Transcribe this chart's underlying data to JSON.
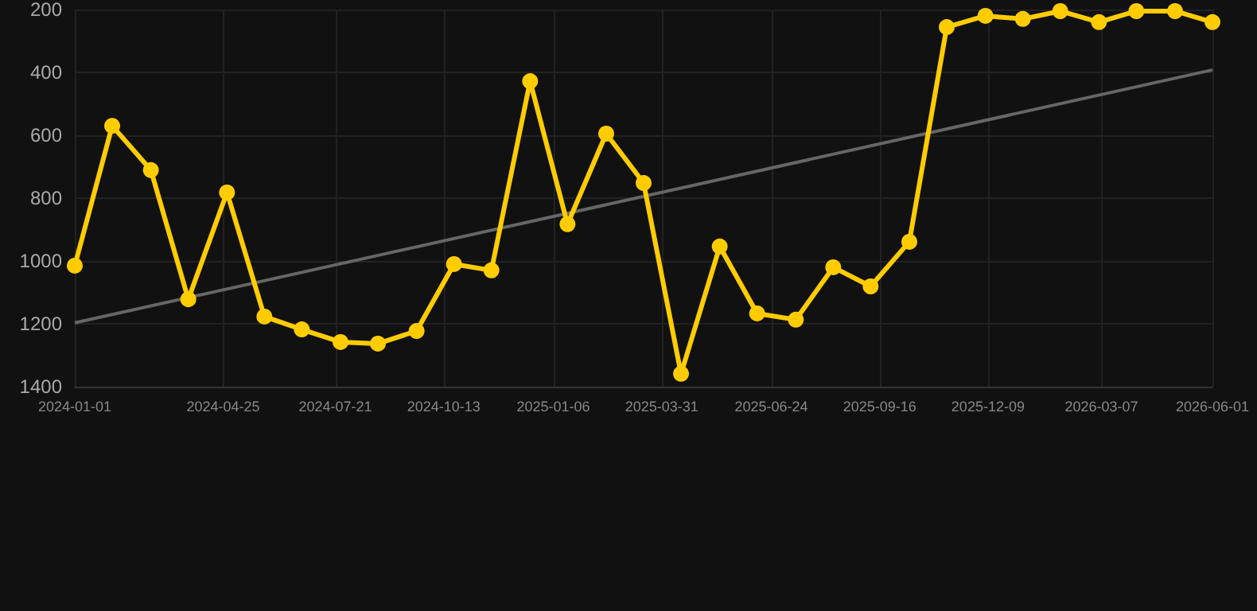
{
  "chart_data": {
    "type": "line",
    "x": [
      "2024-01-01",
      "2024-01-30",
      "2024-02-29",
      "2024-03-29",
      "2024-04-28",
      "2024-05-27",
      "2024-06-25",
      "2024-07-25",
      "2024-08-23",
      "2024-09-22",
      "2024-10-21",
      "2024-11-19",
      "2024-12-19",
      "2025-01-17",
      "2025-02-16",
      "2025-03-17",
      "2025-04-15",
      "2025-05-15",
      "2025-06-13",
      "2025-07-13",
      "2025-08-11",
      "2025-09-09",
      "2025-10-09",
      "2025-11-07",
      "2025-12-07",
      "2026-01-05",
      "2026-02-03",
      "2026-03-05",
      "2026-04-03",
      "2026-05-03",
      "2026-06-01"
    ],
    "series": [
      {
        "color": "#ffcc00",
        "marker": "circle",
        "values": [
          1015,
          570,
          711,
          1122,
          782,
          1177,
          1218,
          1258,
          1263,
          1223,
          1010,
          1030,
          428,
          883,
          595,
          752,
          1359,
          954,
          1167,
          1187,
          1020,
          1081,
          939,
          256,
          220,
          230,
          205,
          240,
          205,
          205,
          240
        ]
      },
      {
        "type": "line",
        "color": "#666666",
        "marker": "none",
        "x": [
          "2024-01-01",
          "2026-06-01"
        ],
        "values": [
          1197,
          392
        ]
      }
    ],
    "ylim": [
      1400,
      200
    ],
    "yticks": [
      200,
      400,
      600,
      800,
      1000,
      1200,
      1400
    ],
    "xlim": [
      "2024-01-01",
      "2026-06-01"
    ],
    "xticks": [
      "2024-01-01",
      "2024-04-25",
      "2024-07-21",
      "2024-10-13",
      "2025-01-06",
      "2025-03-31",
      "2025-06-24",
      "2025-09-16",
      "2025-12-09",
      "2026-03-07",
      "2026-06-01"
    ],
    "grid": true
  }
}
